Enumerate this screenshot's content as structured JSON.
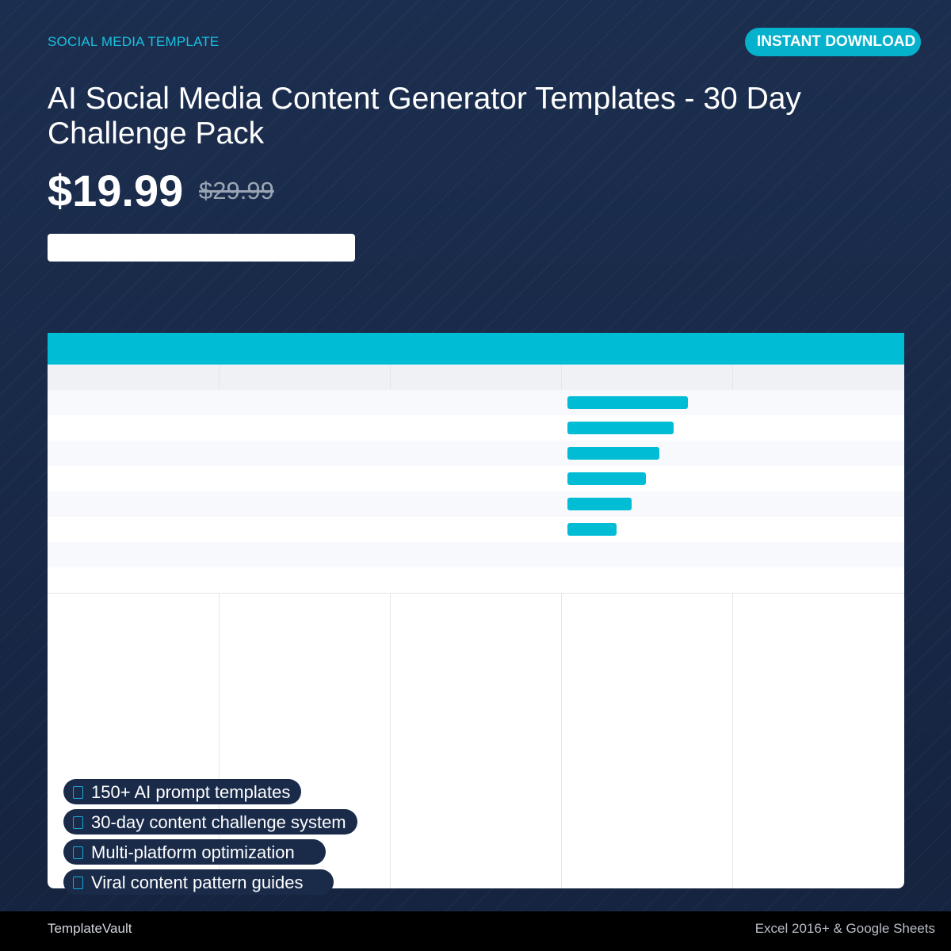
{
  "header": {
    "eyebrow": "SOCIAL MEDIA TEMPLATE",
    "badge": "INSTANT DOWNLOAD"
  },
  "product": {
    "title": "AI Social Media Content Generator Templates - 30 Day Challenge Pack",
    "price": "$19.99",
    "original_price": "$29.99"
  },
  "spreadsheet_preview": {
    "columns": 5,
    "body_rows": 8,
    "bars": [
      1.0,
      0.88,
      0.76,
      0.65,
      0.53,
      0.41
    ]
  },
  "features": [
    {
      "icon": "check-icon",
      "label": "150+ AI prompt templates"
    },
    {
      "icon": "check-icon",
      "label": "30-day content challenge system"
    },
    {
      "icon": "check-icon",
      "label": "Multi-platform optimization"
    },
    {
      "icon": "check-icon",
      "label": "Viral content pattern guides"
    }
  ],
  "footer": {
    "brand": "TemplateVault",
    "compatibility": "Excel 2016+ & Google Sheets"
  },
  "colors": {
    "background": "#1a2b4a",
    "accent": "#00bcd4",
    "badge": "#06b1cc",
    "footer": "#000000"
  }
}
